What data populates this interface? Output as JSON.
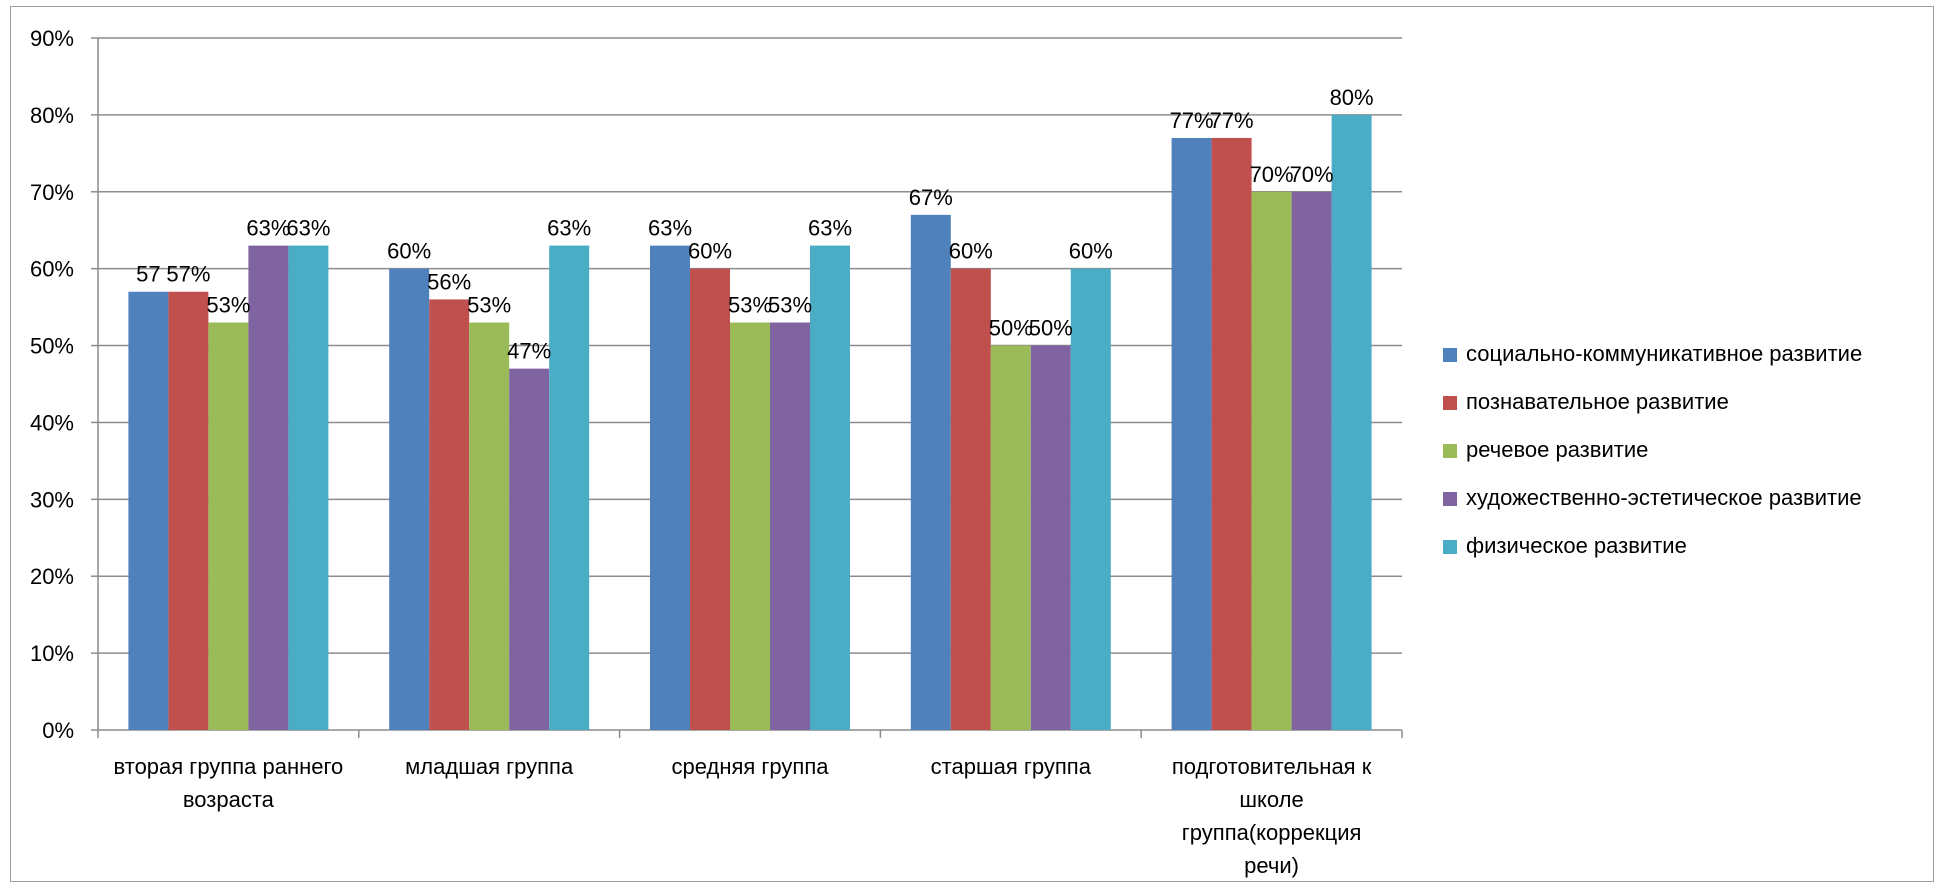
{
  "chart_data": {
    "type": "bar",
    "categories": [
      "вторая группа раннего возраста",
      "младшая группа",
      "средняя группа",
      "старшая группа",
      "подготовительная к школе группа(коррекция речи)"
    ],
    "category_lines": [
      [
        "вторая группа раннего",
        "возраста"
      ],
      [
        "младшая группа"
      ],
      [
        "средняя группа"
      ],
      [
        "старшая группа"
      ],
      [
        "подготовительная к",
        "школе",
        "группа(коррекция",
        "речи)"
      ]
    ],
    "series": [
      {
        "name": "социально-коммуникативное развитие",
        "color": "#4f81bd",
        "values": [
          57,
          60,
          63,
          67,
          77
        ],
        "labels": [
          "57",
          "60%",
          "63%",
          "67%",
          "77%"
        ]
      },
      {
        "name": "познавательное развитие",
        "color": "#c0504d",
        "values": [
          57,
          56,
          60,
          60,
          77
        ],
        "labels": [
          "57%",
          "56%",
          "60%",
          "60%",
          "77%"
        ]
      },
      {
        "name": "речевое развитие",
        "color": "#9bbb59",
        "values": [
          53,
          53,
          53,
          50,
          70
        ],
        "labels": [
          "53%",
          "53%",
          "53%",
          "50%",
          "70%"
        ]
      },
      {
        "name": "художественно-эстетическое развитие",
        "color": "#8064a2",
        "values": [
          63,
          47,
          53,
          50,
          70
        ],
        "labels": [
          "63%",
          "47%",
          "53%",
          "50%",
          "70%"
        ]
      },
      {
        "name": "физическое развитие",
        "color": "#4bacc6",
        "values": [
          63,
          63,
          63,
          60,
          80
        ],
        "labels": [
          "63%",
          "63%",
          "63%",
          "60%",
          "80%"
        ]
      }
    ],
    "y_ticks": [
      "0%",
      "10%",
      "20%",
      "30%",
      "40%",
      "50%",
      "60%",
      "70%",
      "80%",
      "90%"
    ],
    "ylim": [
      0,
      90
    ],
    "grid": true,
    "legend_position": "right",
    "title": "",
    "xlabel": "",
    "ylabel": ""
  }
}
